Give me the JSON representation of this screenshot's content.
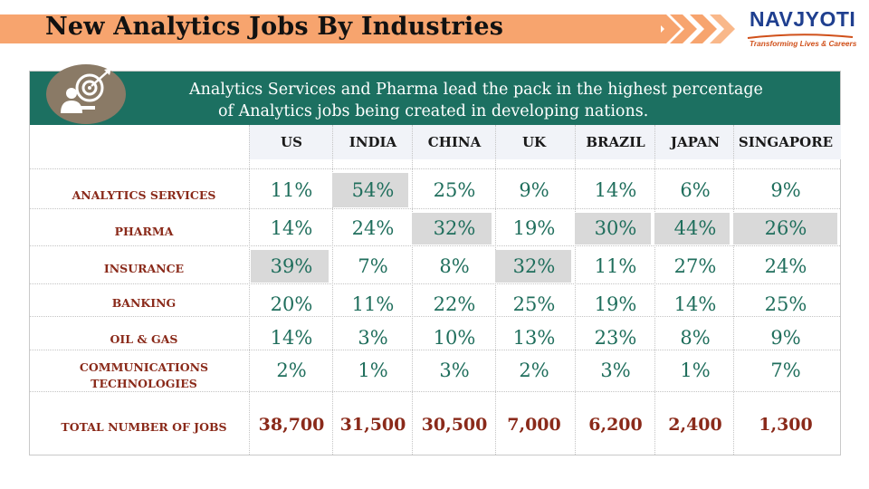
{
  "title": "New Analytics Jobs By Industries",
  "logo": {
    "name": "NAVJYOTI",
    "tagline": "Transforming Lives & Careers",
    "colors": {
      "primary": "#1f3f8f",
      "accent": "#d0501a"
    }
  },
  "header": {
    "line1": "Analytics Services and Pharma lead the pack in the highest percentage",
    "line2": "of Analytics jobs being created in developing nations.",
    "icon": "target-business-icon",
    "color": "#1c7061"
  },
  "table": {
    "columns": [
      "US",
      "INDIA",
      "CHINA",
      "UK",
      "BRAZIL",
      "JAPAN",
      "SINGAPORE"
    ],
    "rows": [
      {
        "label": "ANALYTICS SERVICES",
        "values": [
          "11%",
          "54%",
          "25%",
          "9%",
          "14%",
          "6%",
          "9%"
        ],
        "highlight": [
          false,
          true,
          false,
          false,
          false,
          false,
          false
        ]
      },
      {
        "label": "PHARMA",
        "values": [
          "14%",
          "24%",
          "32%",
          "19%",
          "30%",
          "44%",
          "26%"
        ],
        "highlight": [
          false,
          false,
          true,
          false,
          true,
          true,
          true
        ]
      },
      {
        "label": "INSURANCE",
        "values": [
          "39%",
          "7%",
          "8%",
          "32%",
          "11%",
          "27%",
          "24%"
        ],
        "highlight": [
          true,
          false,
          false,
          true,
          false,
          false,
          false
        ]
      },
      {
        "label": "BANKING",
        "values": [
          "20%",
          "11%",
          "22%",
          "25%",
          "19%",
          "14%",
          "25%"
        ],
        "highlight": [
          false,
          false,
          false,
          false,
          false,
          false,
          false
        ]
      },
      {
        "label": "OIL & GAS",
        "values": [
          "14%",
          "3%",
          "10%",
          "13%",
          "23%",
          "8%",
          "9%"
        ],
        "highlight": [
          false,
          false,
          false,
          false,
          false,
          false,
          false
        ]
      },
      {
        "label_lines": [
          "COMMUNICATIONS",
          "TECHNOLOGIES"
        ],
        "values": [
          "2%",
          "1%",
          "3%",
          "2%",
          "3%",
          "1%",
          "7%"
        ],
        "highlight": [
          false,
          false,
          false,
          false,
          false,
          false,
          false
        ]
      }
    ],
    "totals": {
      "label": "TOTAL NUMBER OF JOBS",
      "values": [
        "38,700",
        "31,500",
        "30,500",
        "7,000",
        "6,200",
        "2,400",
        "1,300"
      ]
    },
    "colors": {
      "value": "#1f6e5c",
      "label": "#8a2a1a",
      "highlight": "#d9d9d9"
    }
  }
}
